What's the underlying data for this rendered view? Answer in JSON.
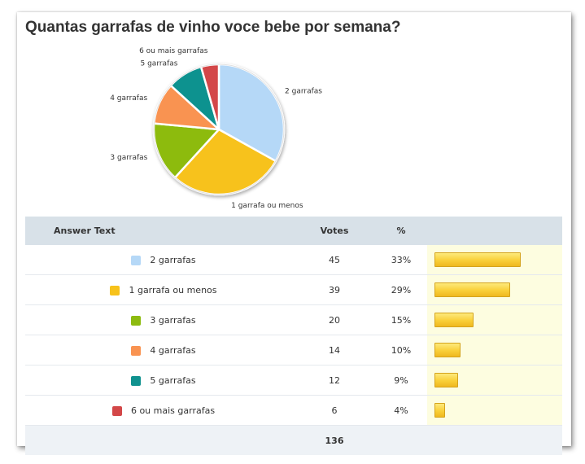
{
  "title": "Quantas garrafas de vinho voce bebe por semana?",
  "chart_data": {
    "type": "pie",
    "title": "Quantas garrafas de vinho voce bebe por semana?",
    "categories": [
      "2 garrafas",
      "1 garrafa ou menos",
      "3 garrafas",
      "4 garrafas",
      "5 garrafas",
      "6 ou mais garrafas"
    ],
    "values": [
      45,
      39,
      20,
      14,
      12,
      6
    ],
    "colors": [
      "#b5d8f7",
      "#f7c21b",
      "#8dbb10",
      "#f99351",
      "#10928f",
      "#d34748"
    ]
  },
  "table": {
    "headers": {
      "answer": "Answer Text",
      "votes": "Votes",
      "percent": "%"
    },
    "rows": [
      {
        "label": "2 garrafas",
        "votes": "45",
        "percent": "33%",
        "color": "#b5d8f7",
        "share": 0.33
      },
      {
        "label": "1 garrafa ou menos",
        "votes": "39",
        "percent": "29%",
        "color": "#f7c21b",
        "share": 0.29
      },
      {
        "label": "3 garrafas",
        "votes": "20",
        "percent": "15%",
        "color": "#8dbb10",
        "share": 0.15
      },
      {
        "label": "4 garrafas",
        "votes": "14",
        "percent": "10%",
        "color": "#f99351",
        "share": 0.1
      },
      {
        "label": "5 garrafas",
        "votes": "12",
        "percent": "9%",
        "color": "#10928f",
        "share": 0.09
      },
      {
        "label": "6 ou mais garrafas",
        "votes": "6",
        "percent": "4%",
        "color": "#d34748",
        "share": 0.04
      }
    ],
    "total": "136"
  }
}
